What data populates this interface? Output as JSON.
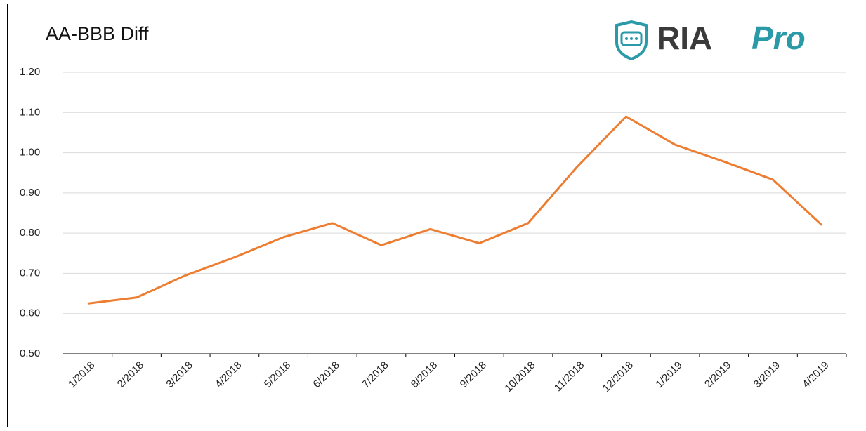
{
  "chart_data": {
    "type": "line",
    "title": "AA-BBB Diff",
    "logo": {
      "text": "RIA",
      "accent": "Pro"
    },
    "categories": [
      "1/2018",
      "2/2018",
      "3/2018",
      "4/2018",
      "5/2018",
      "6/2018",
      "7/2018",
      "8/2018",
      "9/2018",
      "10/2018",
      "11/2018",
      "12/2018",
      "1/2019",
      "2/2019",
      "3/2019",
      "4/2019"
    ],
    "values": [
      0.625,
      0.64,
      0.695,
      0.74,
      0.79,
      0.825,
      0.77,
      0.81,
      0.775,
      0.825,
      0.965,
      1.09,
      1.02,
      0.978,
      0.933,
      0.82
    ],
    "color": "#ed7d31",
    "ylim": [
      0.5,
      1.2
    ],
    "yticks": [
      {
        "value": 0.5,
        "label": "0.50"
      },
      {
        "value": 0.6,
        "label": "0.60"
      },
      {
        "value": 0.7,
        "label": "0.70"
      },
      {
        "value": 0.8,
        "label": "0.80"
      },
      {
        "value": 0.9,
        "label": "0.90"
      },
      {
        "value": 1.0,
        "label": "1.00"
      },
      {
        "value": 1.1,
        "label": "1.10"
      },
      {
        "value": 1.2,
        "label": "1.20"
      }
    ],
    "grid": true
  }
}
